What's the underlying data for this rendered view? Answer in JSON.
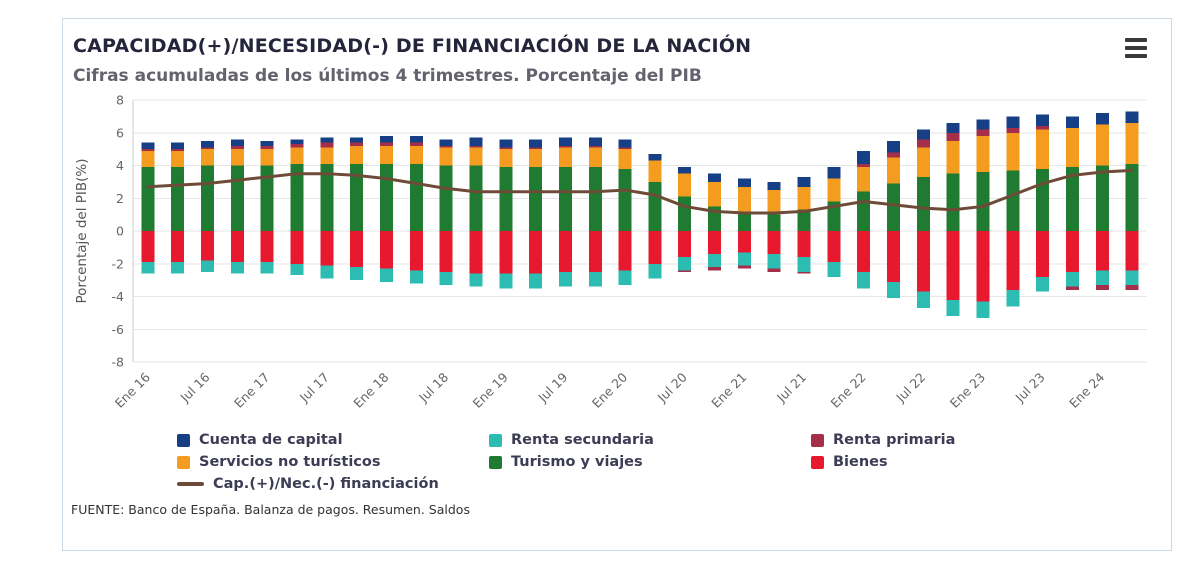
{
  "header": {
    "menu_icon": "hamburger-icon"
  },
  "footer": {
    "source": "FUENTE: Banco de España. Balanza de pagos. Resumen. Saldos"
  },
  "chart_data": {
    "type": "bar",
    "stacked": true,
    "title": "CAPACIDAD(+)/NECESIDAD(-) DE FINANCIACIÓN DE LA NACIÓN",
    "subtitle": "Cifras acumuladas de los últimos 4 trimestres. Porcentaje del PIB",
    "xlabel": "",
    "ylabel": "Porcentaje del PIB(%)",
    "ylim": [
      -8,
      8
    ],
    "ytick_step": 2,
    "grid": true,
    "legend_position": "bottom",
    "categories": [
      "Ene 16",
      "Abr 16",
      "Jul 16",
      "Oct 16",
      "Ene 17",
      "Abr 17",
      "Jul 17",
      "Oct 17",
      "Ene 18",
      "Abr 18",
      "Jul 18",
      "Oct 18",
      "Ene 19",
      "Abr 19",
      "Jul 19",
      "Oct 19",
      "Ene 20",
      "Abr 20",
      "Jul 20",
      "Oct 20",
      "Ene 21",
      "Abr 21",
      "Jul 21",
      "Oct 21",
      "Ene 22",
      "Abr 22",
      "Jul 22",
      "Oct 22",
      "Ene 23",
      "Abr 23",
      "Jul 23",
      "Oct 23",
      "Ene 24",
      "Abr 24"
    ],
    "labeled_tick_prefixes": [
      "Ene",
      "Jul"
    ],
    "series": [
      {
        "name": "Cuenta de capital",
        "type": "bar",
        "color": "#173f85",
        "values": [
          0.4,
          0.4,
          0.4,
          0.4,
          0.3,
          0.3,
          0.3,
          0.3,
          0.4,
          0.4,
          0.4,
          0.5,
          0.5,
          0.5,
          0.5,
          0.5,
          0.5,
          0.4,
          0.4,
          0.5,
          0.5,
          0.5,
          0.6,
          0.7,
          0.8,
          0.7,
          0.6,
          0.6,
          0.6,
          0.7,
          0.7,
          0.7,
          0.7,
          0.7
        ]
      },
      {
        "name": "Renta secundaria",
        "type": "bar",
        "color": "#2cbcb1",
        "values": [
          -0.7,
          -0.7,
          -0.7,
          -0.7,
          -0.7,
          -0.7,
          -0.8,
          -0.8,
          -0.8,
          -0.8,
          -0.8,
          -0.8,
          -0.9,
          -0.9,
          -0.9,
          -0.9,
          -0.9,
          -0.9,
          -0.8,
          -0.8,
          -0.8,
          -0.9,
          -0.9,
          -0.9,
          -1.0,
          -1.0,
          -1.0,
          -1.0,
          -1.0,
          -1.0,
          -0.9,
          -0.9,
          -0.9,
          -0.9
        ]
      },
      {
        "name": "Renta primaria",
        "type": "bar",
        "color": "#a52f49",
        "values": [
          0.1,
          0.1,
          0.1,
          0.2,
          0.2,
          0.2,
          0.3,
          0.2,
          0.2,
          0.2,
          0.1,
          0.1,
          0.1,
          0.1,
          0.1,
          0.1,
          0.1,
          0.0,
          -0.1,
          -0.2,
          -0.2,
          -0.2,
          -0.1,
          0.0,
          0.2,
          0.3,
          0.5,
          0.5,
          0.4,
          0.3,
          0.2,
          -0.2,
          -0.3,
          -0.3
        ]
      },
      {
        "name": "Servicios no turísticos",
        "type": "bar",
        "color": "#f39c1f",
        "values": [
          1.0,
          1.0,
          1.0,
          1.0,
          1.0,
          1.0,
          1.0,
          1.1,
          1.1,
          1.1,
          1.1,
          1.1,
          1.1,
          1.1,
          1.2,
          1.2,
          1.2,
          1.3,
          1.4,
          1.5,
          1.5,
          1.5,
          1.4,
          1.4,
          1.5,
          1.6,
          1.8,
          2.0,
          2.2,
          2.3,
          2.4,
          2.4,
          2.5,
          2.5
        ]
      },
      {
        "name": "Turismo y viajes",
        "type": "bar",
        "color": "#1e7b31",
        "values": [
          3.9,
          3.9,
          4.0,
          4.0,
          4.0,
          4.1,
          4.1,
          4.1,
          4.1,
          4.1,
          4.0,
          4.0,
          3.9,
          3.9,
          3.9,
          3.9,
          3.8,
          3.0,
          2.1,
          1.5,
          1.2,
          1.0,
          1.3,
          1.8,
          2.4,
          2.9,
          3.3,
          3.5,
          3.6,
          3.7,
          3.8,
          3.9,
          4.0,
          4.1
        ]
      },
      {
        "name": "Bienes",
        "type": "bar",
        "color": "#e8192e",
        "values": [
          -1.9,
          -1.9,
          -1.8,
          -1.9,
          -1.9,
          -2.0,
          -2.1,
          -2.2,
          -2.3,
          -2.4,
          -2.5,
          -2.6,
          -2.6,
          -2.6,
          -2.5,
          -2.5,
          -2.4,
          -2.0,
          -1.6,
          -1.4,
          -1.3,
          -1.4,
          -1.6,
          -1.9,
          -2.5,
          -3.1,
          -3.7,
          -4.2,
          -4.3,
          -3.6,
          -2.8,
          -2.5,
          -2.4,
          -2.4
        ]
      },
      {
        "name": "Cap.(+)/Nec.(-) financiación",
        "type": "line",
        "color": "#6e4b38",
        "values": [
          2.7,
          2.8,
          2.9,
          3.1,
          3.3,
          3.5,
          3.5,
          3.4,
          3.2,
          2.9,
          2.6,
          2.4,
          2.4,
          2.4,
          2.4,
          2.4,
          2.5,
          2.2,
          1.5,
          1.2,
          1.1,
          1.1,
          1.2,
          1.5,
          1.8,
          1.6,
          1.4,
          1.3,
          1.5,
          2.2,
          2.9,
          3.4,
          3.6,
          3.7
        ]
      }
    ],
    "stack_order_positive": [
      "Turismo y viajes",
      "Servicios no turísticos",
      "Renta primaria",
      "Cuenta de capital"
    ],
    "stack_order_negative": [
      "Bienes",
      "Renta secundaria",
      "Renta primaria"
    ],
    "legend": [
      "Cuenta de capital",
      "Renta secundaria",
      "Renta primaria",
      "Servicios no turísticos",
      "Turismo y viajes",
      "Bienes",
      "Cap.(+)/Nec.(-) financiación"
    ]
  }
}
